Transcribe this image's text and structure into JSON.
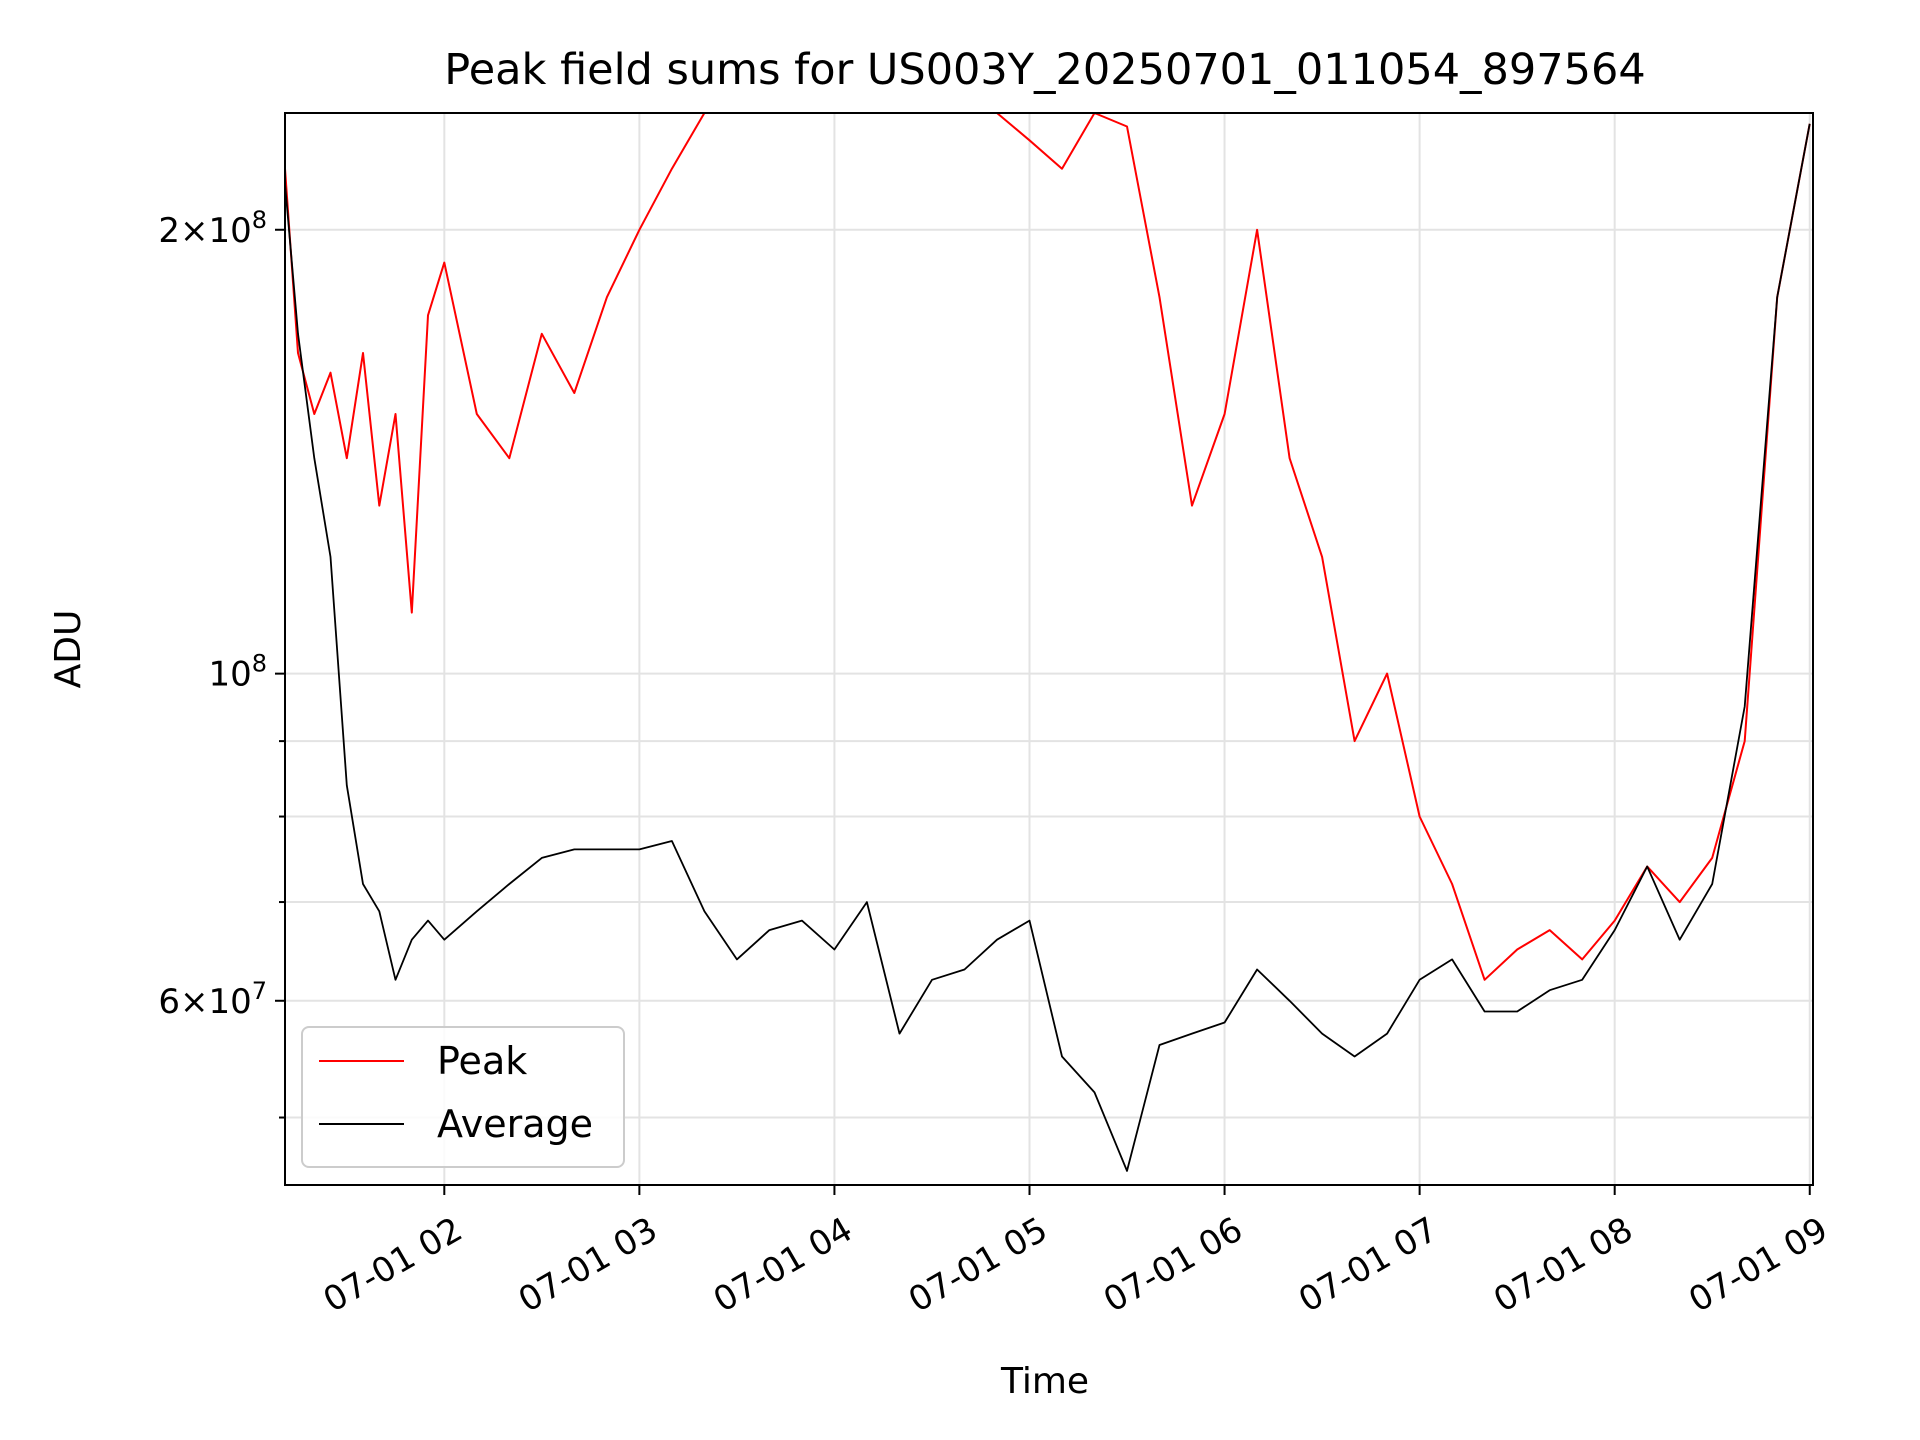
{
  "chart_data": {
    "type": "line",
    "title": "Peak field sums for US003Y_20250701_011054_897564",
    "xlabel": "Time",
    "ylabel": "ADU",
    "yscale": "log",
    "xlim": [
      "07-01 01:11",
      "07-01 09:01"
    ],
    "ylim": [
      45000000,
      240000000
    ],
    "grid": true,
    "legend_position": "lower-left",
    "x_ticks": [
      "07-01 02",
      "07-01 03",
      "07-01 04",
      "07-01 05",
      "07-01 06",
      "07-01 07",
      "07-01 08",
      "07-01 09"
    ],
    "y_ticks": [
      {
        "value": 60000000,
        "mant": "6",
        "exp": "7"
      },
      {
        "value": 100000000,
        "mant": "",
        "exp": "8"
      },
      {
        "value": 200000000,
        "mant": "2",
        "exp": "8"
      }
    ],
    "series": [
      {
        "name": "Peak",
        "color": "#ff0000",
        "x": [
          "07-01 01:11",
          "07-01 01:15",
          "07-01 01:20",
          "07-01 01:25",
          "07-01 01:30",
          "07-01 01:35",
          "07-01 01:40",
          "07-01 01:45",
          "07-01 01:50",
          "07-01 01:55",
          "07-01 02:00",
          "07-01 02:10",
          "07-01 02:20",
          "07-01 02:30",
          "07-01 02:40",
          "07-01 02:50",
          "07-01 03:00",
          "07-01 03:10",
          "07-01 03:20",
          "07-01 03:30",
          "07-01 03:40",
          "07-01 03:50",
          "07-01 04:00",
          "07-01 04:10",
          "07-01 04:20",
          "07-01 04:30",
          "07-01 04:40",
          "07-01 04:50",
          "07-01 05:00",
          "07-01 05:10",
          "07-01 05:20",
          "07-01 05:30",
          "07-01 05:40",
          "07-01 05:50",
          "07-01 06:00",
          "07-01 06:10",
          "07-01 06:20",
          "07-01 06:30",
          "07-01 06:40",
          "07-01 06:50",
          "07-01 07:00",
          "07-01 07:10",
          "07-01 07:20",
          "07-01 07:30",
          "07-01 07:40",
          "07-01 07:50",
          "07-01 08:00",
          "07-01 08:10",
          "07-01 08:20",
          "07-01 08:30",
          "07-01 08:40",
          "07-01 08:50",
          "07-01 09:00"
        ],
        "values": [
          220000000,
          165000000,
          150000000,
          160000000,
          140000000,
          165000000,
          130000000,
          150000000,
          110000000,
          175000000,
          190000000,
          150000000,
          140000000,
          170000000,
          155000000,
          180000000,
          200000000,
          220000000,
          240000000,
          240000000,
          240000000,
          240000000,
          240000000,
          240000000,
          240000000,
          240000000,
          240000000,
          240000000,
          230000000,
          220000000,
          240000000,
          235000000,
          180000000,
          130000000,
          150000000,
          200000000,
          140000000,
          120000000,
          90000000,
          100000000,
          80000000,
          72000000,
          62000000,
          65000000,
          67000000,
          64000000,
          68000000,
          74000000,
          70000000,
          75000000,
          90000000,
          180000000,
          236000000
        ]
      },
      {
        "name": "Average",
        "color": "#000000",
        "x": [
          "07-01 01:11",
          "07-01 01:15",
          "07-01 01:20",
          "07-01 01:25",
          "07-01 01:30",
          "07-01 01:35",
          "07-01 01:40",
          "07-01 01:45",
          "07-01 01:50",
          "07-01 01:55",
          "07-01 02:00",
          "07-01 02:10",
          "07-01 02:20",
          "07-01 02:30",
          "07-01 02:40",
          "07-01 02:50",
          "07-01 03:00",
          "07-01 03:10",
          "07-01 03:20",
          "07-01 03:30",
          "07-01 03:40",
          "07-01 03:50",
          "07-01 04:00",
          "07-01 04:10",
          "07-01 04:20",
          "07-01 04:30",
          "07-01 04:40",
          "07-01 04:50",
          "07-01 05:00",
          "07-01 05:10",
          "07-01 05:20",
          "07-01 05:30",
          "07-01 05:40",
          "07-01 05:50",
          "07-01 06:00",
          "07-01 06:10",
          "07-01 06:20",
          "07-01 06:30",
          "07-01 06:40",
          "07-01 06:50",
          "07-01 07:00",
          "07-01 07:10",
          "07-01 07:20",
          "07-01 07:30",
          "07-01 07:40",
          "07-01 07:50",
          "07-01 08:00",
          "07-01 08:10",
          "07-01 08:20",
          "07-01 08:30",
          "07-01 08:40",
          "07-01 08:50",
          "07-01 09:00"
        ],
        "values": [
          215000000,
          170000000,
          140000000,
          120000000,
          84000000,
          72000000,
          69000000,
          62000000,
          66000000,
          68000000,
          66000000,
          69000000,
          72000000,
          75000000,
          76000000,
          76000000,
          76000000,
          77000000,
          69000000,
          64000000,
          67000000,
          68000000,
          65000000,
          70000000,
          57000000,
          62000000,
          63000000,
          66000000,
          68000000,
          55000000,
          52000000,
          46000000,
          56000000,
          57000000,
          58000000,
          63000000,
          60000000,
          57000000,
          55000000,
          57000000,
          62000000,
          64000000,
          59000000,
          59000000,
          61000000,
          62000000,
          67000000,
          74000000,
          66000000,
          72000000,
          95000000,
          180000000,
          236000000
        ]
      }
    ]
  }
}
